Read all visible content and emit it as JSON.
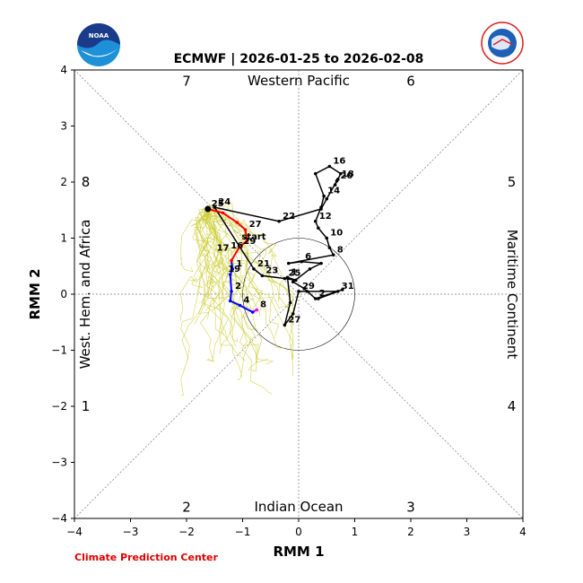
{
  "title": "ECMWF | 2026-01-25 to 2026-02-08",
  "credit": "Climate Prediction Center",
  "logos": {
    "left": "NOAA",
    "right": "NATIONAL WEATHER SERVICE"
  },
  "chart_data": {
    "type": "line",
    "xlabel": "RMM 1",
    "ylabel": "RMM 2",
    "xlim": [
      -4,
      4
    ],
    "ylim": [
      -4,
      4
    ],
    "ticks": [
      -4,
      -3,
      -2,
      -1,
      0,
      1,
      2,
      3,
      4
    ],
    "tick_labels": [
      "−4",
      "−3",
      "−2",
      "−1",
      "0",
      "1",
      "2",
      "3",
      "4"
    ],
    "grid": false,
    "regions": {
      "top": "Western Pacific",
      "bottom": "Indian Ocean",
      "left": "West. Hem. and Africa",
      "right": "Maritime Continent"
    },
    "phases": [
      {
        "label": "1",
        "pos": [
          -3.8,
          -2.0
        ]
      },
      {
        "label": "2",
        "pos": [
          -2.0,
          -3.8
        ]
      },
      {
        "label": "3",
        "pos": [
          2.0,
          -3.8
        ]
      },
      {
        "label": "4",
        "pos": [
          3.8,
          -2.0
        ]
      },
      {
        "label": "5",
        "pos": [
          3.8,
          2.0
        ]
      },
      {
        "label": "6",
        "pos": [
          2.0,
          3.8
        ]
      },
      {
        "label": "7",
        "pos": [
          -2.0,
          3.8
        ]
      },
      {
        "label": "8",
        "pos": [
          -3.8,
          2.0
        ]
      }
    ],
    "colors": {
      "observed": "#000000",
      "ensemble": "#cccc33",
      "forecast_mean_1": "#ff0000",
      "forecast_mean_2": "#0000ff",
      "forecast_mean_3": "#ff00ff"
    },
    "observed": [
      {
        "x": 0.78,
        "y": 0.08
      },
      {
        "x": 0.3,
        "y": -0.08,
        "label": "2"
      },
      {
        "x": 0.1,
        "y": 0.1
      },
      {
        "x": -0.1,
        "y": 0.22
      },
      {
        "x": 0.2,
        "y": 0.45
      },
      {
        "x": 0.4,
        "y": 0.55
      },
      {
        "x": 0.05,
        "y": 0.58,
        "label": "6"
      },
      {
        "x": -0.18,
        "y": 0.55
      },
      {
        "x": 0.62,
        "y": 0.7,
        "label": "8"
      },
      {
        "x": 0.55,
        "y": 0.83
      },
      {
        "x": 0.5,
        "y": 1.0,
        "label": "10"
      },
      {
        "x": 0.35,
        "y": 1.18
      },
      {
        "x": 0.3,
        "y": 1.3,
        "label": "12"
      },
      {
        "x": 0.4,
        "y": 1.55
      },
      {
        "x": 0.45,
        "y": 1.75,
        "label": "14"
      },
      {
        "x": 0.3,
        "y": 2.15
      },
      {
        "x": 0.55,
        "y": 2.28,
        "label": "16"
      },
      {
        "x": 0.75,
        "y": 2.15
      },
      {
        "x": 0.7,
        "y": 2.05,
        "label": "18"
      },
      {
        "x": 0.65,
        "y": 1.95
      },
      {
        "x": 0.68,
        "y": 2.02,
        "label": "20"
      },
      {
        "x": 0.5,
        "y": 1.7
      },
      {
        "x": 0.4,
        "y": 1.52
      },
      {
        "x": -0.35,
        "y": 1.3,
        "label": "22"
      },
      {
        "x": -1.5,
        "y": 1.55,
        "label": "24"
      },
      {
        "x": -0.8,
        "y": 0.45,
        "label": "21"
      },
      {
        "x": -0.65,
        "y": 0.33,
        "label": "23"
      },
      {
        "x": -0.25,
        "y": 0.28,
        "label": "25"
      },
      {
        "x": -0.05,
        "y": 0.25
      },
      {
        "x": -0.2,
        "y": 0.3,
        "label": "1"
      },
      {
        "x": -0.15,
        "y": -0.15
      },
      {
        "x": -0.25,
        "y": -0.55,
        "label": "27"
      },
      {
        "x": -0.1,
        "y": -0.35
      },
      {
        "x": 0.0,
        "y": 0.05,
        "label": "29"
      },
      {
        "x": 0.15,
        "y": 0.05
      },
      {
        "x": 0.7,
        "y": 0.05,
        "label": "31"
      },
      {
        "x": 0.35,
        "y": -0.08
      }
    ],
    "forecast_mean": [
      {
        "x": -1.62,
        "y": 1.52,
        "label": "25",
        "color": "red"
      },
      {
        "x": -1.35,
        "y": 1.45,
        "color": "red"
      },
      {
        "x": -1.1,
        "y": 1.28,
        "color": "red"
      },
      {
        "x": -0.95,
        "y": 1.15,
        "label": "27",
        "color": "red"
      },
      {
        "x": -0.92,
        "y": 0.95,
        "color": "red"
      },
      {
        "x": -1.05,
        "y": 0.85,
        "label": "29",
        "color": "red"
      },
      {
        "x": -1.2,
        "y": 0.6,
        "color": "red"
      },
      {
        "x": -1.18,
        "y": 0.45,
        "label": "1",
        "color": "blue"
      },
      {
        "x": -1.22,
        "y": 0.35,
        "color": "blue"
      },
      {
        "x": -1.2,
        "y": 0.05,
        "label": "2",
        "color": "blue"
      },
      {
        "x": -1.22,
        "y": -0.12,
        "color": "blue"
      },
      {
        "x": -1.05,
        "y": -0.2,
        "label": "4",
        "color": "blue"
      },
      {
        "x": -0.82,
        "y": -0.32,
        "color": "blue"
      },
      {
        "x": -0.75,
        "y": -0.28,
        "label": "8",
        "color": "magenta"
      }
    ],
    "other_labels": [
      {
        "label": "start",
        "x": -0.8,
        "y": 0.98
      },
      {
        "label": "17",
        "x": -1.35,
        "y": 0.78
      },
      {
        "label": "16",
        "x": -1.1,
        "y": 0.82
      },
      {
        "label": "19",
        "x": -1.15,
        "y": 0.4
      }
    ]
  }
}
